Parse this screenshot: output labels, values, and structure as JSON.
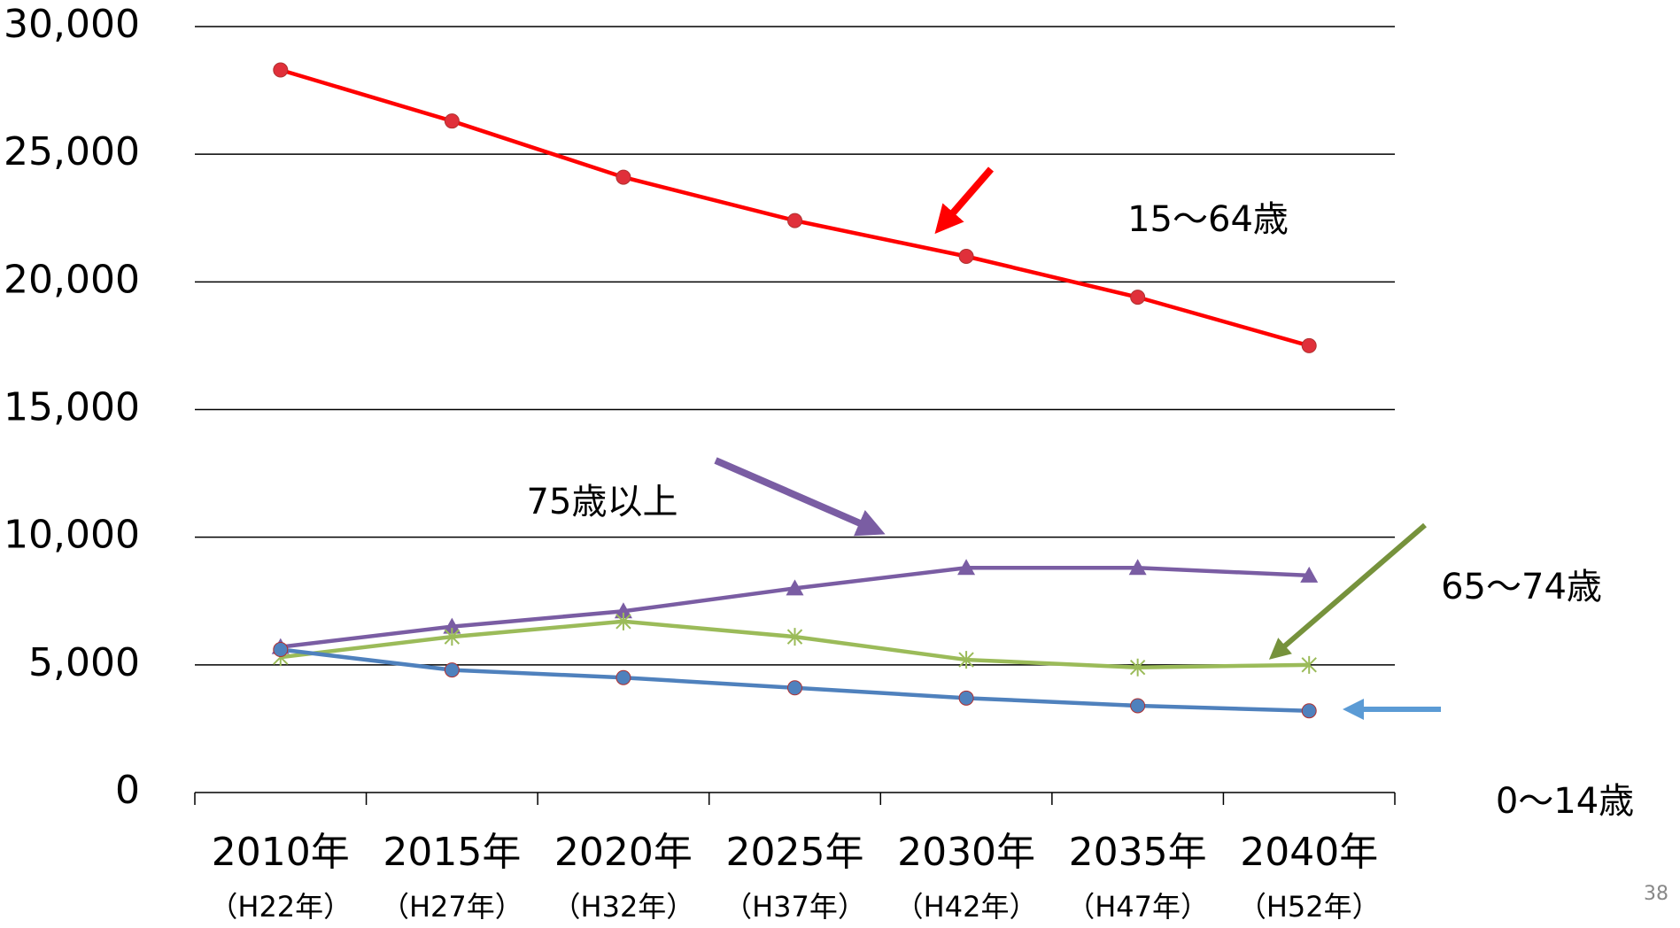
{
  "chart_data": {
    "type": "line",
    "categories": [
      "2010年",
      "2015年",
      "2020年",
      "2025年",
      "2030年",
      "2035年",
      "2040年"
    ],
    "category_sublabels": [
      "（H22年）",
      "（H27年）",
      "（H32年）",
      "（H37年）",
      "（H42年）",
      "（H47年）",
      "（H52年）"
    ],
    "series": [
      {
        "name": "15～64歳",
        "color": "#ff0000",
        "marker": "circle",
        "values": [
          28300,
          26300,
          24100,
          22400,
          21000,
          19400,
          17500
        ]
      },
      {
        "name": "75歳以上",
        "color": "#7a5da3",
        "marker": "triangle",
        "values": [
          5700,
          6500,
          7100,
          8000,
          8800,
          8800,
          8500
        ]
      },
      {
        "name": "65～74歳",
        "color": "#9bbb59",
        "marker": "star",
        "values": [
          5300,
          6100,
          6700,
          6100,
          5200,
          4900,
          5000
        ]
      },
      {
        "name": "0～14歳",
        "color": "#4f81bd",
        "marker": "circle",
        "values": [
          5600,
          4800,
          4500,
          4100,
          3700,
          3400,
          3200
        ]
      }
    ],
    "ylim": [
      0,
      30000
    ],
    "yticks": [
      {
        "value": 0,
        "label": "0"
      },
      {
        "value": 5000,
        "label": "5,000"
      },
      {
        "value": 10000,
        "label": "10,000"
      },
      {
        "value": 15000,
        "label": "15,000"
      },
      {
        "value": 20000,
        "label": "20,000"
      },
      {
        "value": 25000,
        "label": "25,000"
      },
      {
        "value": 30000,
        "label": "30,000"
      }
    ],
    "grid": true,
    "page_number": "38"
  }
}
